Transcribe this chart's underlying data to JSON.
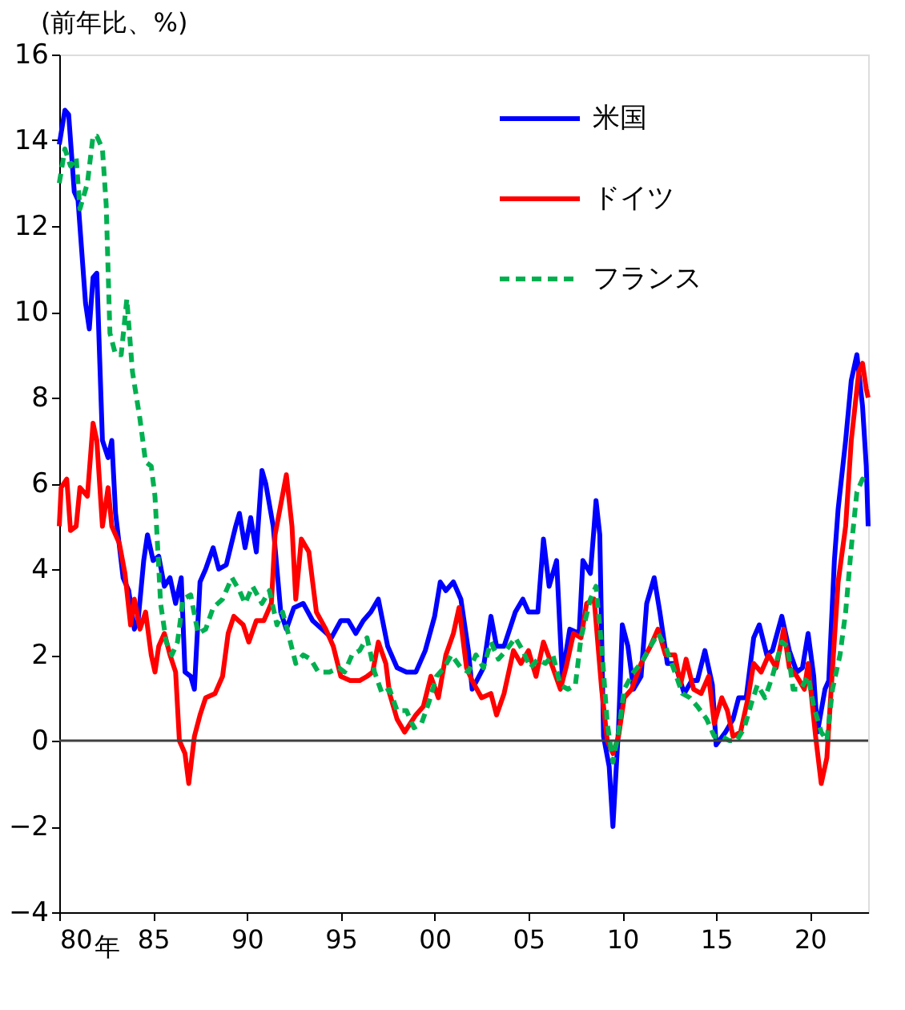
{
  "chart_data": {
    "type": "line",
    "ylabel": "(前年比、%)",
    "xlim": [
      1980,
      2023.1
    ],
    "xticks": [
      {
        "value": 1980,
        "label": "80"
      },
      {
        "value": 1985,
        "label": "85"
      },
      {
        "value": 1990,
        "label": "90"
      },
      {
        "value": 1995,
        "label": "95"
      },
      {
        "value": 2000,
        "label": "00"
      },
      {
        "value": 2005,
        "label": "05"
      },
      {
        "value": 2010,
        "label": "10"
      },
      {
        "value": 2015,
        "label": "15"
      },
      {
        "value": 2020,
        "label": "20"
      }
    ],
    "ylim": [
      -4,
      16
    ],
    "yticks": [
      -4,
      -2,
      0,
      2,
      4,
      6,
      8,
      10,
      12,
      14,
      16
    ],
    "grid": false,
    "legend": "top right",
    "annotations": [
      "年"
    ],
    "ref_lines": [
      {
        "axis": "y",
        "value": 0,
        "color": "#404040"
      }
    ],
    "series": [
      {
        "name": "米国",
        "color": "#0000ff",
        "line_style": "solid",
        "x": [
          1980.0,
          1980.3,
          1980.5,
          1980.8,
          1981.0,
          1981.4,
          1981.6,
          1981.8,
          1982.0,
          1982.3,
          1982.6,
          1982.8,
          1983.0,
          1983.4,
          1983.7,
          1984.0,
          1984.2,
          1984.5,
          1984.7,
          1985.0,
          1985.3,
          1985.6,
          1985.9,
          1986.2,
          1986.5,
          1986.7,
          1987.0,
          1987.2,
          1987.5,
          1987.8,
          1988.2,
          1988.5,
          1988.9,
          1989.4,
          1989.6,
          1989.9,
          1990.2,
          1990.5,
          1990.8,
          1991.0,
          1991.4,
          1991.8,
          1992.1,
          1992.5,
          1993.0,
          1993.5,
          1994.0,
          1994.5,
          1995.0,
          1995.4,
          1995.8,
          1996.2,
          1996.6,
          1997.0,
          1997.5,
          1998.0,
          1998.5,
          1999.0,
          1999.5,
          2000.0,
          2000.3,
          2000.6,
          2001.0,
          2001.4,
          2001.8,
          2002.0,
          2002.6,
          2003.0,
          2003.3,
          2003.7,
          2004.3,
          2004.7,
          2005.0,
          2005.5,
          2005.8,
          2006.1,
          2006.5,
          2006.8,
          2007.2,
          2007.7,
          2007.9,
          2008.3,
          2008.5,
          2008.6,
          2008.8,
          2009.0,
          2009.3,
          2009.5,
          2009.8,
          2010.0,
          2010.3,
          2010.6,
          2011.0,
          2011.3,
          2011.7,
          2012.0,
          2012.4,
          2012.8,
          2013.3,
          2013.7,
          2014.0,
          2014.4,
          2014.8,
          2015.0,
          2015.5,
          2015.9,
          2016.2,
          2016.6,
          2017.0,
          2017.3,
          2017.7,
          2018.0,
          2018.5,
          2018.9,
          2019.3,
          2019.6,
          2019.9,
          2020.2,
          2020.4,
          2020.8,
          2021.0,
          2021.3,
          2021.5,
          2021.9,
          2022.2,
          2022.5,
          2022.8,
          2022.9,
          2023.0,
          2023.1
        ],
        "values": [
          13.9,
          14.7,
          14.6,
          12.8,
          12.6,
          10.2,
          9.6,
          10.8,
          10.9,
          7.0,
          6.6,
          7.0,
          5.3,
          3.8,
          3.5,
          2.6,
          2.8,
          4.2,
          4.8,
          4.2,
          4.3,
          3.6,
          3.8,
          3.2,
          3.8,
          1.6,
          1.5,
          1.2,
          3.7,
          4.0,
          4.5,
          4.0,
          4.1,
          5.0,
          5.3,
          4.5,
          5.2,
          4.4,
          6.3,
          6.0,
          5.0,
          3.0,
          2.6,
          3.1,
          3.2,
          2.8,
          2.6,
          2.4,
          2.8,
          2.8,
          2.5,
          2.8,
          3.0,
          3.3,
          2.2,
          1.7,
          1.6,
          1.6,
          2.1,
          2.9,
          3.7,
          3.5,
          3.7,
          3.3,
          2.1,
          1.2,
          1.7,
          2.9,
          2.2,
          2.2,
          3.0,
          3.3,
          3.0,
          3.0,
          4.7,
          3.6,
          4.2,
          1.5,
          2.6,
          2.5,
          4.2,
          3.9,
          5.0,
          5.6,
          4.8,
          0.1,
          -0.6,
          -2.0,
          0.3,
          2.7,
          2.2,
          1.2,
          1.5,
          3.2,
          3.8,
          3.0,
          1.8,
          1.8,
          1.1,
          1.4,
          1.4,
          2.1,
          1.3,
          -0.1,
          0.2,
          0.5,
          1.0,
          1.0,
          2.4,
          2.7,
          2.0,
          2.1,
          2.9,
          2.1,
          1.6,
          1.7,
          2.5,
          1.5,
          0.2,
          1.2,
          1.4,
          4.2,
          5.4,
          7.0,
          8.4,
          9.0,
          7.8,
          7.1,
          6.4,
          5.0
        ]
      },
      {
        "name": "ドイツ",
        "color": "#ff0000",
        "line_style": "solid",
        "x": [
          1980.0,
          1980.1,
          1980.4,
          1980.6,
          1980.9,
          1981.1,
          1981.5,
          1981.8,
          1982.0,
          1982.3,
          1982.6,
          1982.8,
          1983.2,
          1983.5,
          1983.8,
          1984.0,
          1984.3,
          1984.6,
          1984.9,
          1985.1,
          1985.3,
          1985.6,
          1985.9,
          1986.2,
          1986.4,
          1986.7,
          1986.9,
          1987.2,
          1987.5,
          1987.8,
          1988.3,
          1988.7,
          1989.0,
          1989.3,
          1989.8,
          1990.1,
          1990.5,
          1990.9,
          1991.3,
          1991.5,
          1991.8,
          1992.1,
          1992.4,
          1992.6,
          1992.9,
          1993.3,
          1993.7,
          1994.2,
          1994.6,
          1995.0,
          1995.5,
          1996.0,
          1996.4,
          1996.7,
          1997.0,
          1997.4,
          1997.6,
          1998.0,
          1998.4,
          1999.0,
          1999.4,
          1999.8,
          2000.2,
          2000.6,
          2001.0,
          2001.3,
          2001.7,
          2002.0,
          2002.5,
          2003.0,
          2003.3,
          2003.7,
          2004.2,
          2004.6,
          2005.0,
          2005.4,
          2005.8,
          2006.3,
          2006.7,
          2007.0,
          2007.4,
          2007.8,
          2008.1,
          2008.5,
          2008.9,
          2009.2,
          2009.5,
          2009.8,
          2010.1,
          2010.5,
          2011.0,
          2011.5,
          2011.9,
          2012.3,
          2012.8,
          2013.1,
          2013.4,
          2013.8,
          2014.2,
          2014.6,
          2014.9,
          2015.3,
          2015.6,
          2015.9,
          2016.3,
          2016.7,
          2017.0,
          2017.4,
          2017.8,
          2018.2,
          2018.6,
          2018.9,
          2019.3,
          2019.7,
          2019.9,
          2020.3,
          2020.6,
          2020.9,
          2021.1,
          2021.5,
          2021.9,
          2022.2,
          2022.6,
          2022.8,
          2023.0,
          2023.1
        ],
        "values": [
          5.0,
          5.9,
          6.1,
          4.9,
          5.0,
          5.9,
          5.7,
          7.4,
          7.0,
          5.0,
          5.9,
          5.0,
          4.6,
          3.9,
          2.7,
          3.3,
          2.6,
          3.0,
          2.0,
          1.6,
          2.2,
          2.5,
          2.0,
          1.6,
          0.0,
          -0.3,
          -1.0,
          0.1,
          0.6,
          1.0,
          1.1,
          1.5,
          2.5,
          2.9,
          2.7,
          2.3,
          2.8,
          2.8,
          3.2,
          4.8,
          5.5,
          6.2,
          5.0,
          3.3,
          4.7,
          4.4,
          3.0,
          2.6,
          2.2,
          1.5,
          1.4,
          1.4,
          1.5,
          1.6,
          2.3,
          1.8,
          1.1,
          0.5,
          0.2,
          0.6,
          0.8,
          1.5,
          1.0,
          2.0,
          2.5,
          3.1,
          1.7,
          1.4,
          1.0,
          1.1,
          0.6,
          1.1,
          2.1,
          1.8,
          2.1,
          1.5,
          2.3,
          1.7,
          1.2,
          1.7,
          2.5,
          2.4,
          3.2,
          3.3,
          1.2,
          0.0,
          -0.3,
          0.1,
          1.0,
          1.2,
          1.8,
          2.2,
          2.6,
          2.0,
          2.0,
          1.3,
          1.9,
          1.2,
          1.1,
          1.5,
          0.4,
          1.0,
          0.7,
          0.1,
          0.2,
          1.0,
          1.8,
          1.6,
          2.0,
          1.7,
          2.6,
          1.7,
          1.5,
          1.2,
          1.8,
          0.1,
          -1.0,
          -0.4,
          1.0,
          3.7,
          5.0,
          7.0,
          8.6,
          8.8,
          8.2,
          8.0
        ]
      },
      {
        "name": "フランス",
        "color": "#00b050",
        "line_style": "dashed",
        "x": [
          1980.0,
          1980.3,
          1980.6,
          1980.9,
          1981.1,
          1981.5,
          1981.8,
          1982.0,
          1982.3,
          1982.5,
          1982.7,
          1983.0,
          1983.3,
          1983.6,
          1983.9,
          1984.3,
          1984.6,
          1984.9,
          1985.1,
          1985.4,
          1985.7,
          1986.0,
          1986.3,
          1986.6,
          1987.0,
          1987.4,
          1987.8,
          1988.2,
          1988.7,
          1989.2,
          1989.6,
          1989.9,
          1990.3,
          1990.8,
          1991.2,
          1991.6,
          1991.9,
          1992.2,
          1992.6,
          1993.0,
          1993.4,
          1993.8,
          1994.4,
          1994.9,
          1995.2,
          1995.6,
          1996.0,
          1996.4,
          1996.8,
          1997.2,
          1997.6,
          1998.0,
          1998.5,
          1998.9,
          1999.3,
          1999.7,
          2000.1,
          2000.5,
          2000.9,
          2001.4,
          2001.8,
          2002.2,
          2002.6,
          2003.0,
          2003.4,
          2003.8,
          2004.3,
          2004.7,
          2005.1,
          2005.5,
          2005.9,
          2006.3,
          2006.7,
          2007.1,
          2007.5,
          2007.8,
          2008.3,
          2008.6,
          2008.9,
          2009.2,
          2009.5,
          2009.8,
          2010.1,
          2010.6,
          2011.0,
          2011.5,
          2011.9,
          2012.3,
          2012.8,
          2013.2,
          2013.6,
          2014.0,
          2014.5,
          2014.9,
          2015.3,
          2015.7,
          2016.1,
          2016.5,
          2016.9,
          2017.2,
          2017.6,
          2018.0,
          2018.5,
          2018.8,
          2019.1,
          2019.5,
          2019.9,
          2020.2,
          2020.6,
          2020.9,
          2021.2,
          2021.6,
          2021.9,
          2022.2,
          2022.5,
          2022.8,
          2023.1
        ],
        "values": [
          13.0,
          13.8,
          13.4,
          13.6,
          12.4,
          13.0,
          14.1,
          14.1,
          13.8,
          12.5,
          9.5,
          9.0,
          9.0,
          10.3,
          8.6,
          7.5,
          6.5,
          6.4,
          5.7,
          3.2,
          2.3,
          2.0,
          2.3,
          3.3,
          3.4,
          2.5,
          2.6,
          3.1,
          3.3,
          3.8,
          3.5,
          3.2,
          3.6,
          3.2,
          3.5,
          2.7,
          3.0,
          2.5,
          1.8,
          2.0,
          1.9,
          1.6,
          1.6,
          1.7,
          1.6,
          2.0,
          2.1,
          2.4,
          1.6,
          1.1,
          1.2,
          0.7,
          0.7,
          0.3,
          0.4,
          0.9,
          1.5,
          1.7,
          2.0,
          1.7,
          1.6,
          2.0,
          1.7,
          2.3,
          1.9,
          2.1,
          2.4,
          2.1,
          1.7,
          1.9,
          1.8,
          2.0,
          1.3,
          1.2,
          1.3,
          2.4,
          3.3,
          3.6,
          2.2,
          0.4,
          -0.5,
          0.2,
          1.2,
          1.6,
          1.8,
          2.2,
          2.5,
          2.2,
          1.6,
          1.1,
          1.0,
          0.8,
          0.5,
          0.1,
          0.1,
          0.0,
          0.0,
          0.3,
          0.9,
          1.3,
          1.0,
          1.5,
          2.3,
          2.2,
          1.2,
          1.2,
          1.5,
          0.8,
          0.2,
          0.0,
          1.2,
          2.0,
          3.0,
          4.5,
          5.8,
          6.1,
          6.0
        ]
      }
    ]
  }
}
